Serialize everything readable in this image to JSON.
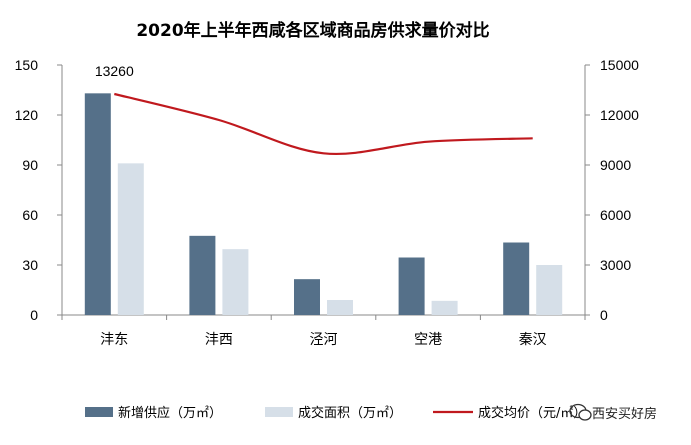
{
  "chart_data": {
    "type": "bar",
    "title": "2020年上半年西咸各区域商品房供求量价对比",
    "categories": [
      "沣东",
      "沣西",
      "泾河",
      "空港",
      "秦汉"
    ],
    "series": [
      {
        "name": "新增供应（万㎡）",
        "kind": "bar",
        "axis": "left",
        "color": "#557089",
        "values": [
          133,
          47.5,
          21.5,
          34.5,
          43.5
        ]
      },
      {
        "name": "成交面积（万㎡）",
        "kind": "bar",
        "axis": "left",
        "color": "#d6dfe8",
        "values": [
          91,
          39.5,
          9,
          8.5,
          30
        ]
      },
      {
        "name": "成交均价（元/㎡）",
        "kind": "line",
        "axis": "right",
        "color": "#c0191e",
        "values": [
          13260,
          11700,
          9700,
          10400,
          10600
        ]
      }
    ],
    "yleft": {
      "min": 0,
      "max": 150,
      "ticks": [
        0,
        30,
        60,
        90,
        120,
        150
      ]
    },
    "yright": {
      "min": 0,
      "max": 15000,
      "ticks": [
        0,
        3000,
        6000,
        9000,
        12000,
        15000
      ]
    },
    "data_labels": [
      {
        "series": 2,
        "index": 0,
        "text": "13260"
      }
    ],
    "legend_position": "bottom",
    "grid": false
  },
  "watermark": {
    "text": "西安买好房",
    "icon": "wechat-icon"
  }
}
